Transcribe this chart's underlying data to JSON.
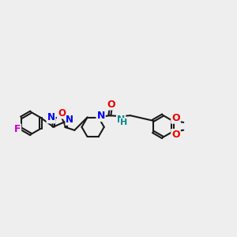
{
  "background_color": "#eeeeee",
  "bond_color": "#1a1a1a",
  "bond_width": 1.5,
  "atom_colors": {
    "N_blue": "#0000ee",
    "N_teal": "#008888",
    "O_red": "#ee0000",
    "F_magenta": "#cc00cc",
    "C": "#1a1a1a"
  },
  "figsize": [
    3.0,
    3.0
  ],
  "dpi": 100,
  "xlim": [
    0,
    15
  ],
  "ylim": [
    2,
    9
  ]
}
